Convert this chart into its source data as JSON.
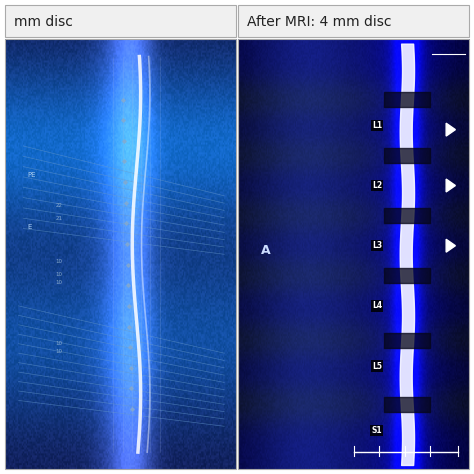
{
  "title_left": "mm disc",
  "title_right": "After MRI: 4 mm disc",
  "header_bg": "#f0f0f0",
  "header_text_color": "#222222",
  "header_fontsize": 10,
  "fig_bg": "#ffffff",
  "panel_border": "#aaaaaa",
  "left_bg_color": "#0a1a4a",
  "right_bg_color": "#0a1533",
  "spine_labels_right": [
    "L1",
    "L2",
    "L3",
    "L4",
    "L5",
    "S1"
  ],
  "marker_A_text": "A",
  "marker_A_color": "#ccddff"
}
